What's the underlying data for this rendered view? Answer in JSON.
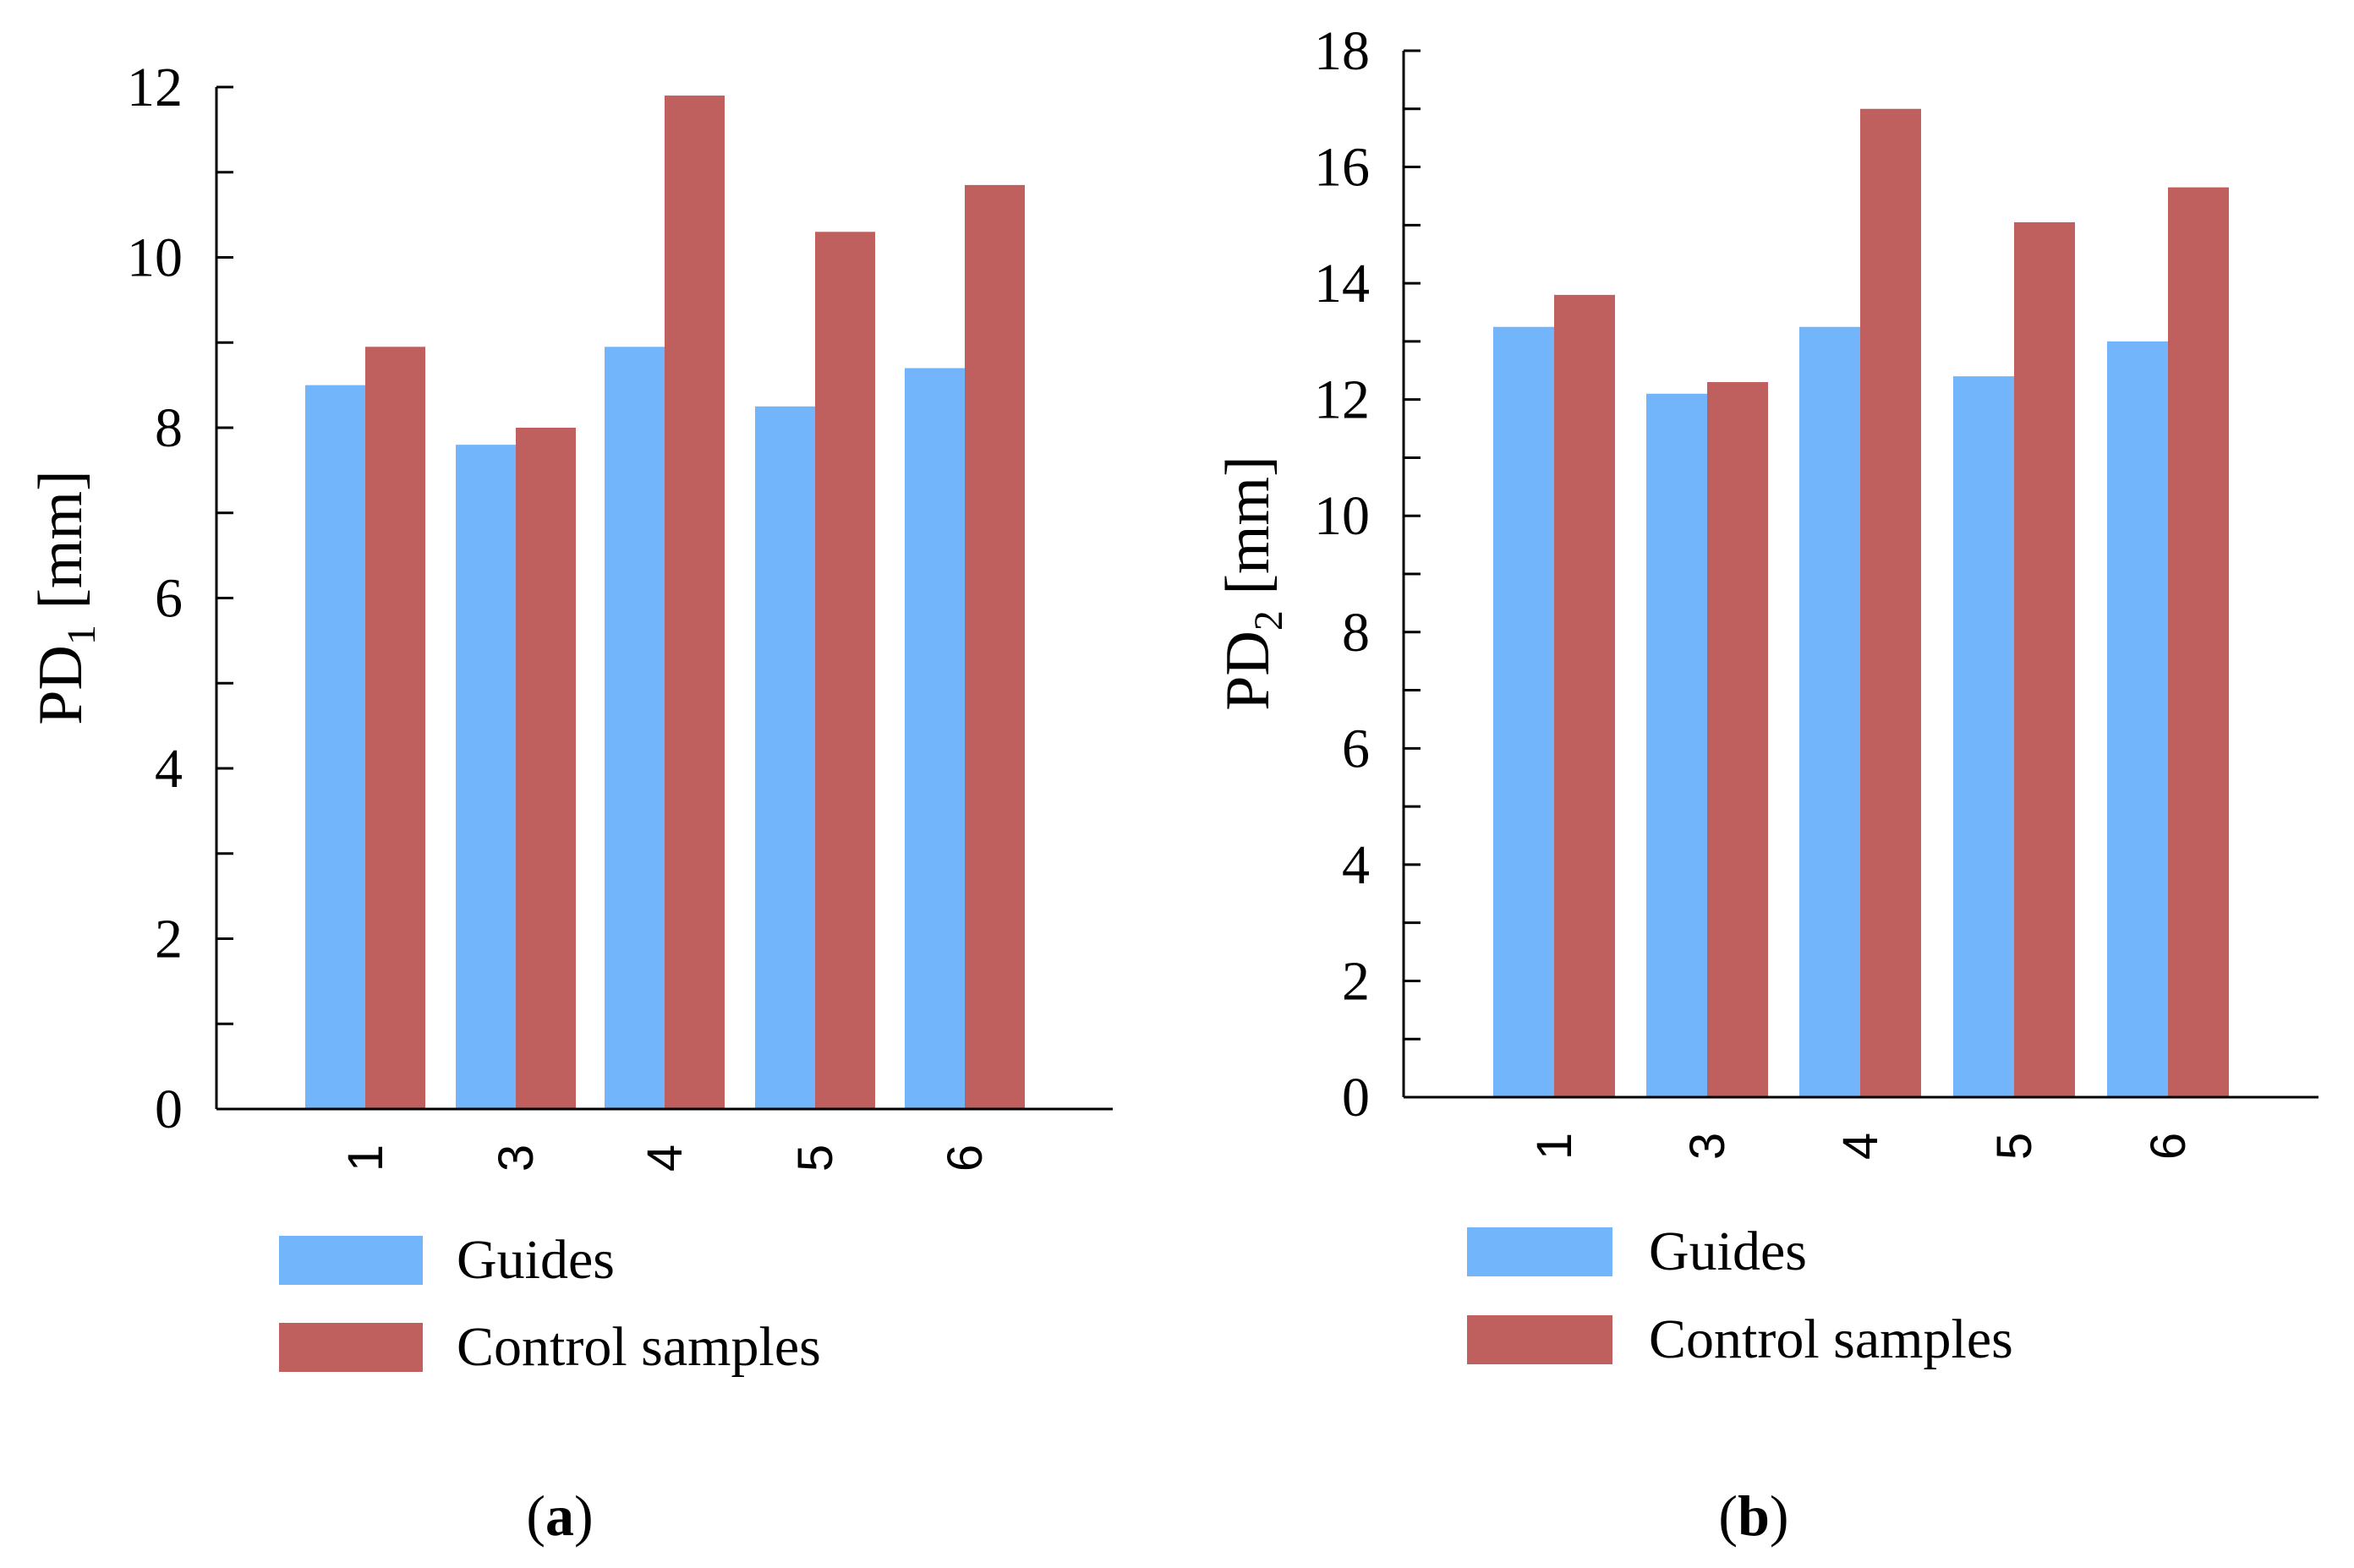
{
  "colors": {
    "guides": "#73b5fb",
    "control": "#bf5f5e",
    "axis": "#000000"
  },
  "chart_data": [
    {
      "type": "bar",
      "panel": "(a)",
      "panel_parts": {
        "open": "(",
        "letter": "a",
        "close": ")"
      },
      "ylabel": {
        "main": "PD",
        "sub": "1",
        "unit": " [mm]"
      },
      "xlabel": "",
      "categories": [
        "1",
        "3",
        "4",
        "5",
        "6"
      ],
      "ylim": [
        0,
        12
      ],
      "yticks": [
        0,
        2,
        4,
        6,
        8,
        10,
        12
      ],
      "legend": [
        "Guides",
        "Control samples"
      ],
      "legend_position": "bottom",
      "series": [
        {
          "name": "Guides",
          "values": [
            8.5,
            7.8,
            8.95,
            8.25,
            8.7
          ]
        },
        {
          "name": "Control samples",
          "values": [
            8.95,
            8.0,
            11.9,
            10.3,
            10.85
          ]
        }
      ]
    },
    {
      "type": "bar",
      "panel": "(b)",
      "panel_parts": {
        "open": "(",
        "letter": "b",
        "close": ")"
      },
      "ylabel": {
        "main": "PD",
        "sub": "2",
        "unit": " [mm]"
      },
      "xlabel": "",
      "categories": [
        "1",
        "3",
        "4",
        "5",
        "6"
      ],
      "ylim": [
        0,
        18
      ],
      "yticks": [
        0,
        2,
        4,
        6,
        8,
        10,
        12,
        14,
        16,
        18
      ],
      "legend": [
        "Guides",
        "Control samples"
      ],
      "legend_position": "bottom",
      "series": [
        {
          "name": "Guides",
          "values": [
            13.25,
            12.1,
            13.25,
            12.4,
            13.0
          ]
        },
        {
          "name": "Control samples",
          "values": [
            13.8,
            12.3,
            17.0,
            15.05,
            15.65
          ]
        }
      ]
    }
  ]
}
